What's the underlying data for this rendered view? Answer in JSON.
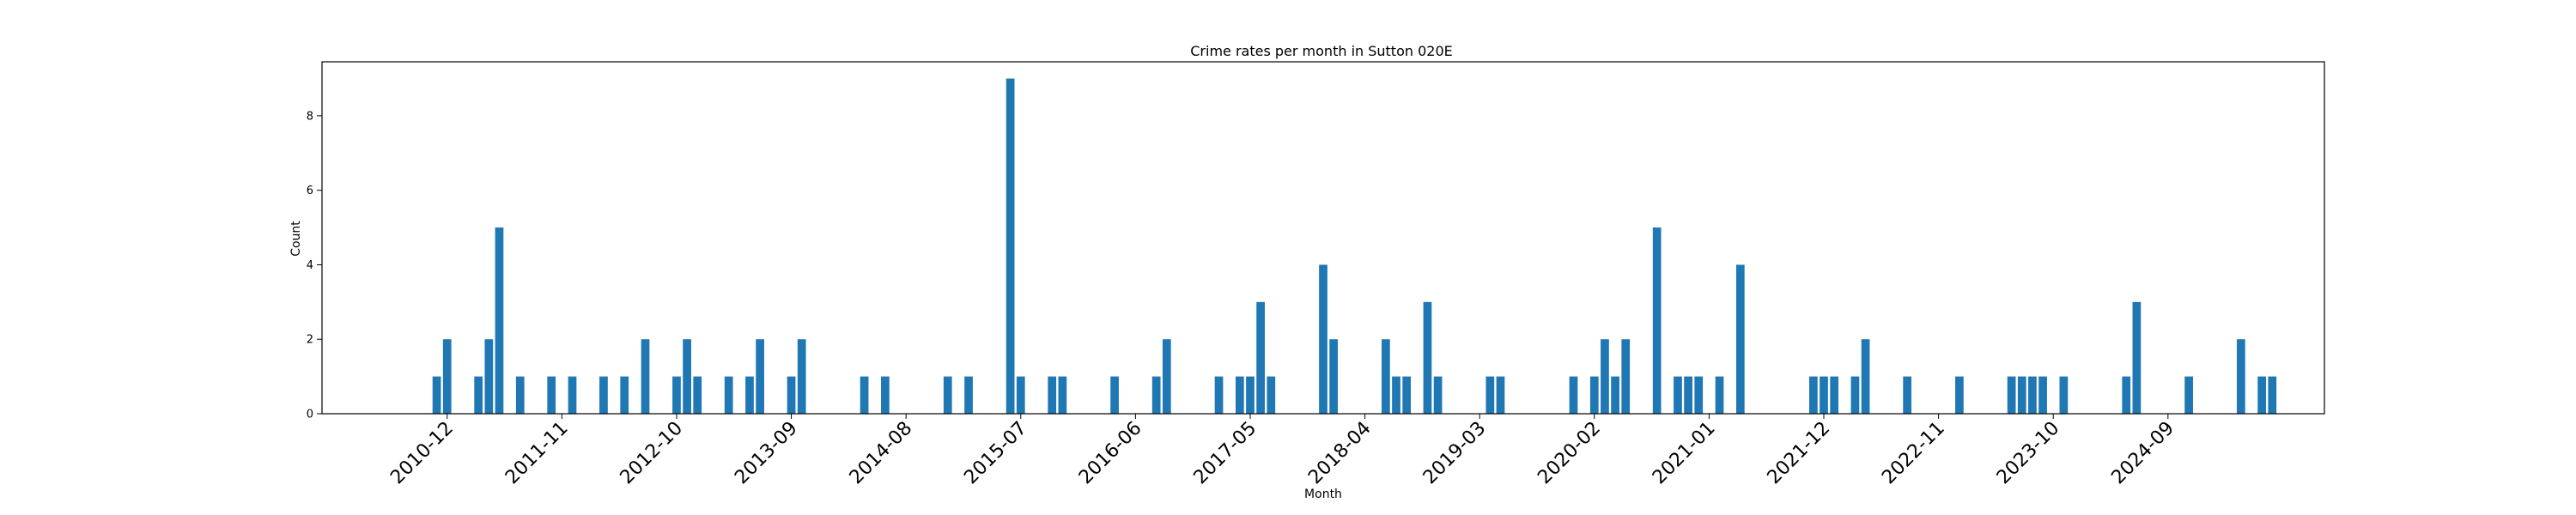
{
  "chart_data": {
    "type": "bar",
    "title": "Crime rates per month in Sutton 020E",
    "xlabel": "Month",
    "ylabel": "Count",
    "ylim": [
      0,
      9.45
    ],
    "yticks": [
      0,
      2,
      4,
      6,
      8
    ],
    "x_range": [
      "2009-12",
      "2025-12"
    ],
    "xticks": [
      "2010-12",
      "2011-11",
      "2012-10",
      "2013-09",
      "2014-08",
      "2015-07",
      "2016-06",
      "2017-05",
      "2018-04",
      "2019-03",
      "2020-02",
      "2021-01",
      "2021-12",
      "2022-11",
      "2023-10",
      "2024-09"
    ],
    "bar_color": "#1f77b4",
    "grid": false,
    "x": [
      "2010-11",
      "2010-12",
      "2011-03",
      "2011-04",
      "2011-05",
      "2011-07",
      "2011-10",
      "2011-12",
      "2012-03",
      "2012-05",
      "2012-07",
      "2012-10",
      "2012-11",
      "2012-12",
      "2013-03",
      "2013-05",
      "2013-06",
      "2013-09",
      "2013-10",
      "2014-04",
      "2014-06",
      "2014-12",
      "2015-02",
      "2015-06",
      "2015-07",
      "2015-10",
      "2015-11",
      "2016-04",
      "2016-08",
      "2016-09",
      "2017-02",
      "2017-04",
      "2017-05",
      "2017-06",
      "2017-07",
      "2017-12",
      "2018-01",
      "2018-06",
      "2018-07",
      "2018-08",
      "2018-10",
      "2018-11",
      "2019-04",
      "2019-05",
      "2019-12",
      "2020-02",
      "2020-03",
      "2020-04",
      "2020-05",
      "2020-08",
      "2020-10",
      "2020-11",
      "2020-12",
      "2021-02",
      "2021-04",
      "2021-11",
      "2021-12",
      "2022-01",
      "2022-03",
      "2022-04",
      "2022-08",
      "2023-01",
      "2023-06",
      "2023-07",
      "2023-08",
      "2023-09",
      "2023-11",
      "2024-05",
      "2024-06",
      "2024-11",
      "2025-04",
      "2025-06",
      "2025-07"
    ],
    "values": [
      1,
      2,
      1,
      2,
      5,
      1,
      1,
      1,
      1,
      1,
      2,
      1,
      2,
      1,
      1,
      1,
      2,
      1,
      2,
      1,
      1,
      1,
      1,
      9,
      1,
      1,
      1,
      1,
      1,
      2,
      1,
      1,
      1,
      3,
      1,
      4,
      2,
      2,
      1,
      1,
      3,
      1,
      1,
      1,
      1,
      1,
      2,
      1,
      2,
      5,
      1,
      1,
      1,
      1,
      4,
      1,
      1,
      1,
      1,
      2,
      1,
      1,
      1,
      1,
      1,
      1,
      1,
      1,
      3,
      1,
      2,
      1,
      1
    ]
  }
}
